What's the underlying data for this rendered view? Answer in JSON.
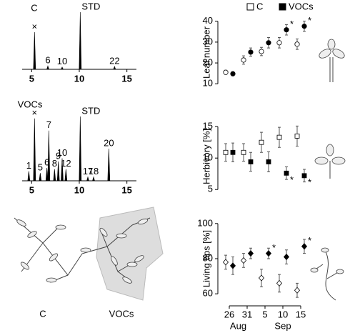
{
  "chart_data": [
    {
      "type": "chromatogram",
      "title": "C",
      "x": [
        5.3,
        6.7,
        8.2,
        10.1,
        13.7
      ],
      "values": [
        65,
        6,
        4,
        100,
        5
      ],
      "labels": [
        "×",
        "6",
        "10",
        "STD",
        "22"
      ],
      "xlim": [
        4,
        16
      ],
      "xticks": [
        5,
        10,
        15
      ]
    },
    {
      "type": "chromatogram",
      "title": "VOCs",
      "x": [
        4.7,
        5.3,
        5.9,
        6.6,
        6.8,
        7.4,
        7.8,
        8.2,
        8.6,
        10.1,
        10.9,
        11.5,
        13.1
      ],
      "values": [
        15,
        97,
        12,
        20,
        78,
        18,
        30,
        35,
        18,
        100,
        6,
        6,
        50
      ],
      "labels": [
        "1",
        "×",
        "5",
        "6",
        "7",
        "8",
        "9",
        "10",
        "12",
        "STD",
        "17",
        "18",
        "20"
      ],
      "xlim": [
        4,
        16
      ],
      "xticks": [
        5,
        10,
        15
      ]
    },
    {
      "type": "errorbar",
      "ylabel": "Leaf number",
      "ylim": [
        7,
        43
      ],
      "yticks": [
        10,
        20,
        30,
        40
      ],
      "series": [
        {
          "name": "C",
          "filled": false,
          "marker": "circle",
          "values": [
            15.5,
            21.4,
            25.5,
            29.7,
            29
          ],
          "errors": [
            1,
            2,
            2,
            2.5,
            2.5
          ],
          "significance": [
            null,
            null,
            null,
            null,
            null
          ]
        },
        {
          "name": "VOCs",
          "filled": true,
          "marker": "circle",
          "values": [
            14.8,
            25.2,
            29.7,
            35.9,
            37.6
          ],
          "errors": [
            1,
            2,
            2.5,
            2.5,
            2.5
          ],
          "significance": [
            null,
            null,
            null,
            "*",
            "*"
          ]
        }
      ]
    },
    {
      "type": "errorbar",
      "ylabel": "Herbivory [%]",
      "ylim": [
        4,
        16.5
      ],
      "yticks": [
        5,
        10,
        15
      ],
      "series": [
        {
          "filled": false,
          "marker": "square",
          "values": [
            10.9,
            10.9,
            12.5,
            13.3,
            13.5
          ],
          "errors": [
            1.4,
            1.4,
            1.6,
            1.6,
            1.6
          ],
          "significance": [
            null,
            null,
            null,
            null,
            null
          ]
        },
        {
          "filled": true,
          "marker": "square",
          "values": [
            10.9,
            9.4,
            9.4,
            7.6,
            7.2
          ],
          "errors": [
            1.5,
            1.5,
            1.6,
            1,
            1
          ],
          "significance": [
            null,
            null,
            null,
            "*",
            "*"
          ]
        }
      ]
    },
    {
      "type": "errorbar",
      "ylabel": "Living tips [%]",
      "ylim": [
        56,
        104
      ],
      "yticks": [
        60,
        80,
        100
      ],
      "categories": [
        "26",
        "31",
        "5",
        "10",
        "15"
      ],
      "months": [
        "Aug",
        "Sep"
      ],
      "series": [
        {
          "filled": false,
          "marker": "diamond",
          "values": [
            78,
            79,
            69,
            66,
            62
          ],
          "errors": [
            4,
            4,
            5,
            5,
            4
          ],
          "significance": [
            null,
            null,
            null,
            null,
            null
          ]
        },
        {
          "filled": true,
          "marker": "diamond",
          "values": [
            76,
            83,
            83,
            81,
            87
          ],
          "errors": [
            5,
            3,
            3,
            4,
            4
          ],
          "significance": [
            null,
            null,
            "*",
            null,
            "*"
          ]
        }
      ]
    }
  ],
  "illustration": {
    "labels": [
      "C",
      "VOCs"
    ]
  }
}
